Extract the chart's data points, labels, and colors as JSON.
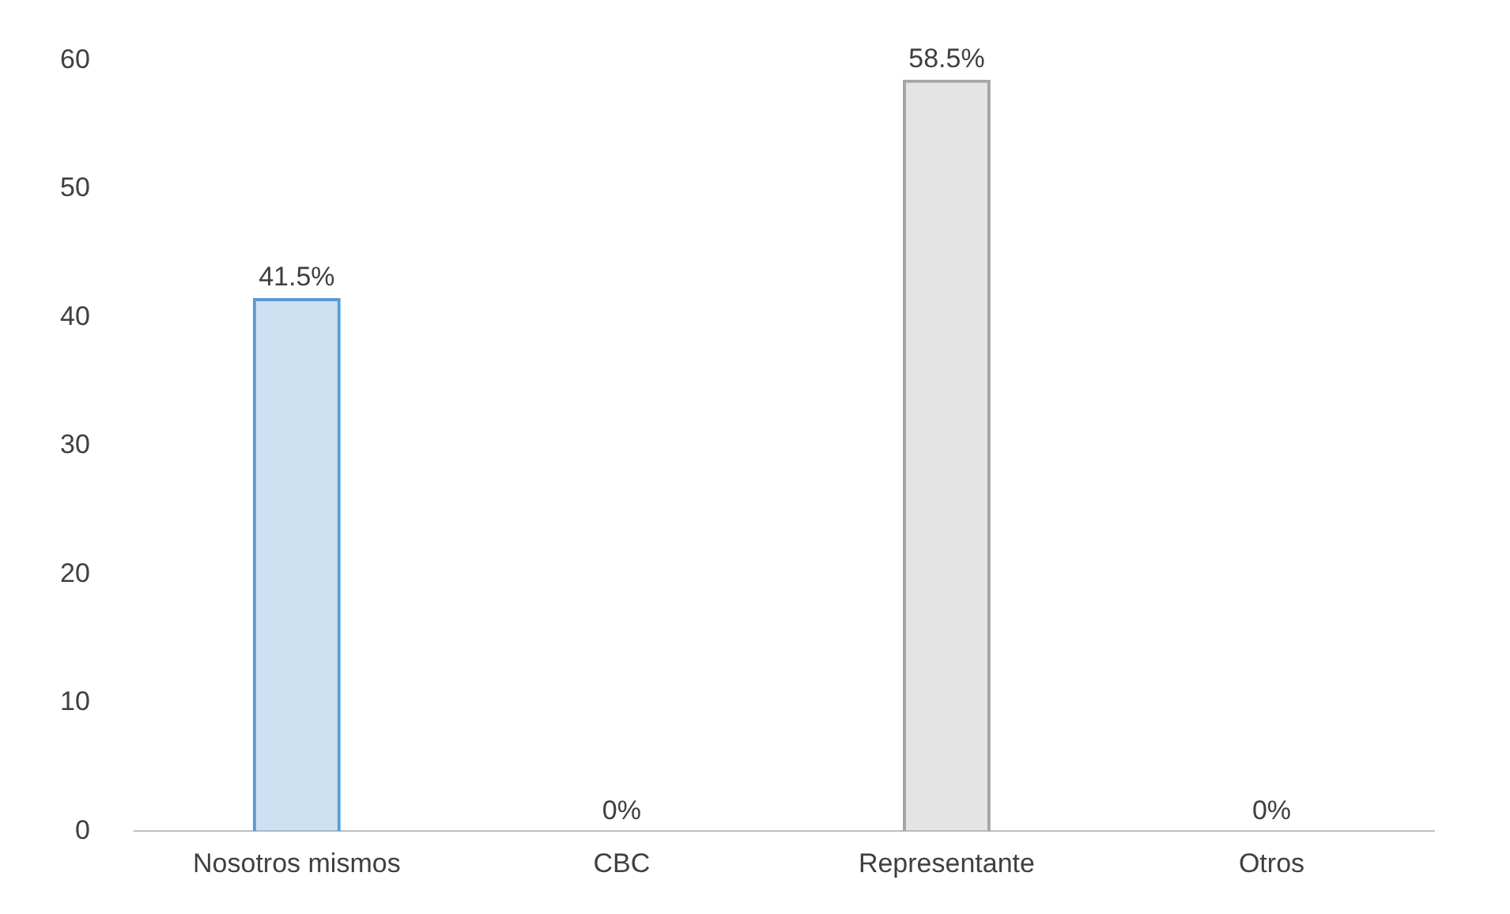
{
  "chart_data": {
    "type": "bar",
    "categories": [
      "Nosotros mismos",
      "CBC",
      "Representante",
      "Otros"
    ],
    "values": [
      41.5,
      0,
      58.5,
      0
    ],
    "colors": [
      "#5b9bd5",
      "#ed7d31",
      "#a5a5a5",
      "#ffc000"
    ],
    "value_labels": [
      "41.5%",
      "0%",
      "58.5%",
      "0%"
    ],
    "ylim": [
      0,
      60
    ],
    "yticks": [
      0,
      10,
      20,
      30,
      40,
      50,
      60
    ],
    "grid": false,
    "legend": false
  }
}
